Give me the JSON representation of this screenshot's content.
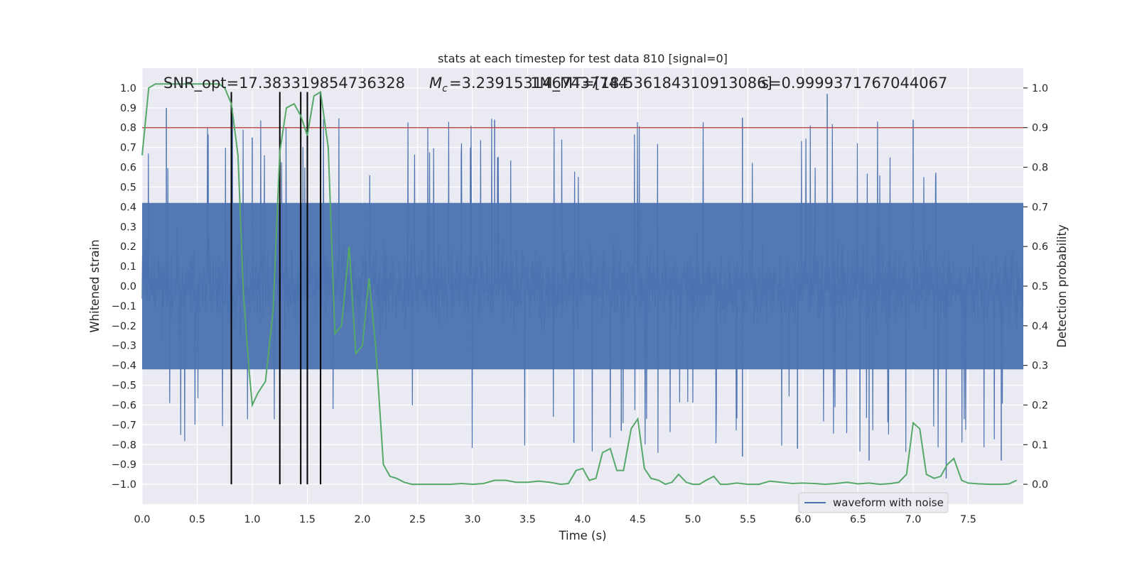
{
  "chart_data": {
    "type": "line",
    "title": "stats at each timestep for test data 810 [signal=0]",
    "xlabel": "Time (s)",
    "ylabel_left": "Whitened strain",
    "ylabel_right": "Detection probability",
    "xlim": [
      0.0,
      8.0
    ],
    "ylim_left": [
      -1.1,
      1.1
    ],
    "ylim_right": [
      -0.05,
      1.05
    ],
    "x_ticks": [
      0.0,
      0.5,
      1.0,
      1.5,
      2.0,
      2.5,
      3.0,
      3.5,
      4.0,
      4.5,
      5.0,
      5.5,
      6.0,
      6.5,
      7.0,
      7.5
    ],
    "x_tick_labels": [
      "0.0",
      "0.5",
      "1.0",
      "1.5",
      "2.0",
      "2.5",
      "3.0",
      "3.5",
      "4.0",
      "4.5",
      "5.0",
      "5.5",
      "6.0",
      "6.5",
      "7.0",
      "7.5"
    ],
    "y_ticks_left": [
      1.0,
      0.9,
      0.8,
      0.7,
      0.6,
      0.5,
      0.4,
      0.3,
      0.2,
      0.1,
      0.0,
      -0.1,
      -0.2,
      -0.3,
      -0.4,
      -0.5,
      -0.6,
      -0.7,
      -0.8,
      -0.9,
      -1.0
    ],
    "y_tick_labels_left": [
      "1.0",
      "0.9",
      "0.8",
      "0.7",
      "0.6",
      "0.5",
      "0.4",
      "0.3",
      "0.2",
      "0.1",
      "0.0",
      "−0.1",
      "−0.2",
      "−0.3",
      "−0.4",
      "−0.5",
      "−0.6",
      "−0.7",
      "−0.8",
      "−0.9",
      "−1.0"
    ],
    "y_ticks_right": [
      1.0,
      0.9,
      0.8,
      0.7,
      0.6,
      0.5,
      0.4,
      0.3,
      0.2,
      0.1,
      0.0
    ],
    "y_tick_labels_right": [
      "1.0",
      "0.9",
      "0.8",
      "0.7",
      "0.6",
      "0.5",
      "0.4",
      "0.3",
      "0.2",
      "0.1",
      "0.0"
    ],
    "grid": true,
    "legend": {
      "position": "lower-right",
      "entries": [
        "waveform with noise"
      ]
    },
    "annotations": {
      "snr": "SNR_opt=17.383319854736328",
      "mc": "=3.2391531467437744",
      "mc_symbol_main": "M",
      "mc_symbol_sub": "c",
      "mass": "1M_MT=[18.536184310913086]",
      "s": "s=0.9999371767044067"
    },
    "threshold": {
      "value": 0.9,
      "axis": "right",
      "color": "#c44e52"
    },
    "event_lines_x": [
      0.81,
      1.25,
      1.44,
      1.5,
      1.62
    ],
    "event_lines_ylim": [
      -1.0,
      0.98
    ],
    "series": [
      {
        "name": "waveform with noise",
        "axis": "left",
        "color": "#4c72b0",
        "kind": "noise",
        "note_ranges": {
          "core_low": -0.42,
          "core_high": 0.42,
          "max": 0.97,
          "min": -0.97
        },
        "spikes": [
          {
            "x": 0.22,
            "y": 0.9
          },
          {
            "x": 0.82,
            "y": 0.9
          },
          {
            "x": 1.0,
            "y": 0.75
          },
          {
            "x": 3.2,
            "y": 0.84
          },
          {
            "x": 3.92,
            "y": -0.79
          },
          {
            "x": 4.35,
            "y": -0.73
          },
          {
            "x": 5.45,
            "y": 0.85
          },
          {
            "x": 5.45,
            "y": -0.86
          },
          {
            "x": 5.95,
            "y": -0.82
          },
          {
            "x": 6.22,
            "y": 0.97
          },
          {
            "x": 6.6,
            "y": -0.88
          },
          {
            "x": 7.3,
            "y": -0.97
          },
          {
            "x": 7.8,
            "y": -0.88
          },
          {
            "x": 7.0,
            "y": 0.84
          }
        ]
      },
      {
        "name": "",
        "axis": "right",
        "color": "#55a868",
        "x": [
          0.0,
          0.06,
          0.12,
          0.2,
          0.3,
          0.4,
          0.5,
          0.6,
          0.7,
          0.75,
          0.81,
          0.87,
          0.92,
          0.97,
          1.0,
          1.05,
          1.12,
          1.19,
          1.25,
          1.31,
          1.38,
          1.44,
          1.5,
          1.56,
          1.62,
          1.69,
          1.75,
          1.81,
          1.88,
          1.94,
          2.0,
          2.06,
          2.12,
          2.19,
          2.25,
          2.31,
          2.38,
          2.45,
          2.5,
          2.6,
          2.7,
          2.8,
          2.9,
          3.0,
          3.1,
          3.2,
          3.3,
          3.4,
          3.5,
          3.6,
          3.7,
          3.8,
          3.87,
          3.94,
          4.0,
          4.06,
          4.12,
          4.18,
          4.25,
          4.31,
          4.37,
          4.44,
          4.5,
          4.56,
          4.62,
          4.69,
          4.75,
          4.81,
          4.87,
          4.94,
          5.0,
          5.06,
          5.12,
          5.19,
          5.25,
          5.31,
          5.4,
          5.5,
          5.6,
          5.7,
          5.8,
          5.9,
          6.0,
          6.1,
          6.2,
          6.3,
          6.4,
          6.5,
          6.6,
          6.7,
          6.8,
          6.87,
          6.94,
          7.0,
          7.06,
          7.12,
          7.19,
          7.25,
          7.31,
          7.37,
          7.44,
          7.5,
          7.6,
          7.7,
          7.8,
          7.87,
          7.94
        ],
        "values": [
          0.83,
          1.0,
          1.01,
          1.01,
          1.01,
          1.01,
          1.01,
          1.01,
          1.01,
          1.0,
          0.96,
          0.83,
          0.48,
          0.29,
          0.2,
          0.23,
          0.26,
          0.44,
          0.84,
          0.95,
          0.96,
          0.93,
          0.88,
          0.98,
          0.99,
          0.85,
          0.38,
          0.4,
          0.6,
          0.33,
          0.35,
          0.52,
          0.35,
          0.05,
          0.02,
          0.015,
          0.005,
          0.0,
          0.0,
          0.0,
          0.0,
          0.0,
          0.002,
          0.0,
          0.002,
          0.01,
          0.01,
          0.005,
          0.005,
          0.008,
          0.005,
          0.0,
          0.002,
          0.035,
          0.04,
          0.01,
          0.015,
          0.08,
          0.09,
          0.035,
          0.035,
          0.14,
          0.165,
          0.04,
          0.015,
          0.01,
          0.0,
          0.005,
          0.025,
          0.005,
          0.0,
          0.0,
          0.01,
          0.02,
          0.0,
          0.0,
          0.003,
          0.0,
          0.0,
          0.008,
          0.005,
          0.002,
          0.003,
          0.002,
          0.0,
          0.002,
          0.005,
          0.001,
          0.003,
          0.0,
          0.002,
          0.005,
          0.025,
          0.155,
          0.14,
          0.025,
          0.015,
          0.02,
          0.05,
          0.065,
          0.01,
          0.003,
          0.001,
          0.0,
          0.0,
          0.001,
          0.01
        ]
      }
    ]
  }
}
